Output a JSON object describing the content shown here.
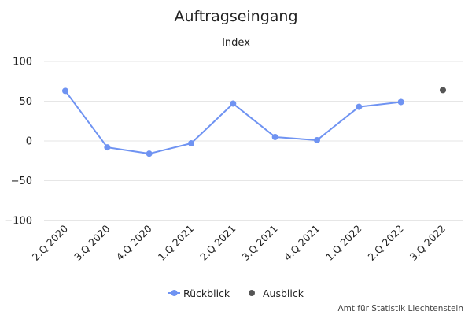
{
  "chart_data": {
    "type": "line",
    "title": "Auftragseingang",
    "subtitle": "Index",
    "categories": [
      "2.Q 2020",
      "3.Q 2020",
      "4.Q 2020",
      "1.Q 2021",
      "2.Q 2021",
      "3.Q 2021",
      "4.Q 2021",
      "1.Q 2022",
      "2.Q 2022",
      "3.Q 2022"
    ],
    "ylim": [
      -100,
      100
    ],
    "yticks": [
      100,
      50,
      0,
      -50,
      -100
    ],
    "grid": true,
    "legend_position": "bottom",
    "series": [
      {
        "name": "Rückblick",
        "color": "#6f93f2",
        "values": [
          63,
          -8,
          -16,
          -3,
          47,
          5,
          1,
          43,
          49,
          null
        ]
      },
      {
        "name": "Ausblick",
        "color": "#555555",
        "values": [
          null,
          null,
          null,
          null,
          null,
          null,
          null,
          null,
          null,
          64
        ]
      }
    ]
  },
  "credit": "Amt für Statistik Liechtenstein"
}
